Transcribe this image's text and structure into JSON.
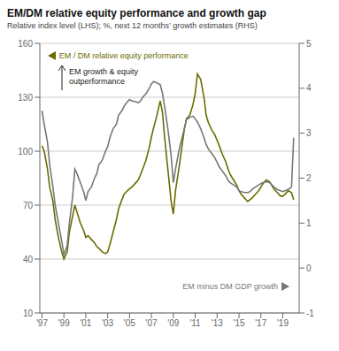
{
  "chart_data": {
    "type": "line",
    "title": "EM/DM relative equity performance and growth gap",
    "subtitle": "Relative index level (LHS); %, next 12 months’ growth estimates (RHS)",
    "annotation": "EM growth & equity\noutperformance",
    "x": [
      1997.0,
      1997.2,
      1997.5,
      1997.7,
      1998.0,
      1998.2,
      1998.5,
      1998.8,
      1999.0,
      1999.3,
      1999.5,
      1999.8,
      2000.0,
      2000.2,
      2000.5,
      2000.8,
      2001.0,
      2001.2,
      2001.5,
      2001.8,
      2002.0,
      2002.2,
      2002.5,
      2002.8,
      2003.0,
      2003.2,
      2003.5,
      2003.8,
      2004.0,
      2004.3,
      2004.5,
      2004.8,
      2005.0,
      2005.2,
      2005.5,
      2005.8,
      2006.0,
      2006.2,
      2006.5,
      2006.8,
      2007.0,
      2007.2,
      2007.5,
      2007.8,
      2008.0,
      2008.2,
      2008.5,
      2008.8,
      2009.0,
      2009.2,
      2009.5,
      2009.8,
      2010.0,
      2010.2,
      2010.5,
      2010.8,
      2011.0,
      2011.2,
      2011.5,
      2011.8,
      2012.0,
      2012.2,
      2012.5,
      2012.8,
      2013.0,
      2013.2,
      2013.5,
      2013.8,
      2014.0,
      2014.2,
      2014.5,
      2014.8,
      2015.0,
      2015.2,
      2015.5,
      2015.8,
      2016.0,
      2016.2,
      2016.5,
      2016.8,
      2017.0,
      2017.2,
      2017.5,
      2017.8,
      2018.0,
      2018.2,
      2018.5,
      2018.8,
      2019.0,
      2019.2,
      2019.5,
      2019.8,
      2020.0
    ],
    "series": [
      {
        "name": "EM / DM relative equity performance",
        "color": "#6b6b00",
        "axis": "y",
        "values": [
          103,
          100,
          90,
          80,
          72,
          62,
          52,
          44,
          40,
          44,
          55,
          64,
          70,
          66,
          60,
          56,
          52,
          53,
          51,
          49,
          47,
          46,
          44,
          43,
          44,
          48,
          55,
          62,
          68,
          73,
          76,
          78,
          79,
          80,
          82,
          84,
          87,
          90,
          95,
          102,
          108,
          113,
          120,
          128,
          122,
          108,
          90,
          72,
          65,
          78,
          90,
          103,
          112,
          118,
          120,
          126,
          132,
          143,
          140,
          130,
          120,
          116,
          112,
          109,
          106,
          103,
          98,
          94,
          90,
          87,
          84,
          81,
          78,
          76,
          74,
          72,
          73,
          74,
          76,
          78,
          80,
          82,
          84,
          83,
          81,
          79,
          77,
          75,
          75,
          76,
          78,
          77,
          73
        ]
      },
      {
        "name": "EM minus DM GDP growth",
        "color": "#777777",
        "axis": "y2",
        "values": [
          3.5,
          3.2,
          2.8,
          2.3,
          1.8,
          1.4,
          1.0,
          0.6,
          0.3,
          0.5,
          1.0,
          1.6,
          2.2,
          2.1,
          1.9,
          1.7,
          1.5,
          1.7,
          1.8,
          2.0,
          2.1,
          2.3,
          2.4,
          2.6,
          2.7,
          2.9,
          3.1,
          3.2,
          3.4,
          3.5,
          3.6,
          3.7,
          3.75,
          3.72,
          3.7,
          3.68,
          3.72,
          3.8,
          3.88,
          4.0,
          4.1,
          4.15,
          4.12,
          4.08,
          3.9,
          3.6,
          3.1,
          2.5,
          1.9,
          2.2,
          2.6,
          2.9,
          3.1,
          3.3,
          3.35,
          3.38,
          3.32,
          3.25,
          3.1,
          2.9,
          2.75,
          2.65,
          2.55,
          2.45,
          2.35,
          2.25,
          2.15,
          2.05,
          1.95,
          1.9,
          1.85,
          1.8,
          1.72,
          1.7,
          1.68,
          1.68,
          1.7,
          1.75,
          1.8,
          1.85,
          1.88,
          1.9,
          1.92,
          1.9,
          1.85,
          1.8,
          1.75,
          1.72,
          1.7,
          1.72,
          1.75,
          1.8,
          2.9
        ]
      }
    ],
    "xlim": [
      1996.8,
      2020.5
    ],
    "xticks": [
      {
        "value": 1997,
        "label": "'97"
      },
      {
        "value": 1999,
        "label": "'99"
      },
      {
        "value": 2001,
        "label": "'01"
      },
      {
        "value": 2003,
        "label": "'03"
      },
      {
        "value": 2005,
        "label": "'05"
      },
      {
        "value": 2007,
        "label": "'07"
      },
      {
        "value": 2009,
        "label": "'09"
      },
      {
        "value": 2011,
        "label": "'11"
      },
      {
        "value": 2013,
        "label": "'13"
      },
      {
        "value": 2015,
        "label": "'15"
      },
      {
        "value": 2017,
        "label": "'17"
      },
      {
        "value": 2019,
        "label": "'19"
      }
    ],
    "ylim": [
      10,
      160
    ],
    "yticks": [
      10,
      40,
      70,
      100,
      130,
      160
    ],
    "y2lim": [
      -1,
      5
    ],
    "y2ticks": [
      -1,
      0,
      1,
      2,
      3,
      4,
      5
    ],
    "grid": true
  }
}
